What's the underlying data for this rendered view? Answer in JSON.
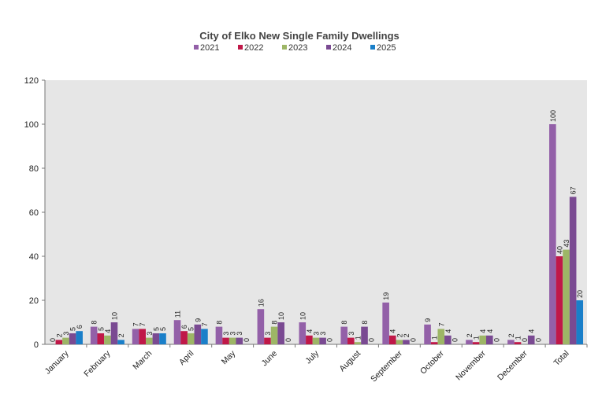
{
  "chart_data": {
    "type": "bar",
    "title": "City of Elko New Single Family Dwellings",
    "xlabel": "",
    "ylabel": "",
    "ylim": [
      0,
      120
    ],
    "yticks": [
      0,
      20,
      40,
      60,
      80,
      100,
      120
    ],
    "grid": false,
    "legend_position": "top-center",
    "categories": [
      "January",
      "February",
      "March",
      "April",
      "May",
      "June",
      "July",
      "August",
      "September",
      "October",
      "November",
      "December",
      "Total"
    ],
    "series": [
      {
        "name": "2021",
        "color": "#9360a8",
        "values": [
          0,
          8,
          7,
          11,
          8,
          16,
          10,
          8,
          19,
          9,
          2,
          2,
          100
        ]
      },
      {
        "name": "2022",
        "color": "#c01848",
        "values": [
          2,
          5,
          7,
          6,
          3,
          3,
          4,
          3,
          4,
          1,
          1,
          1,
          40
        ]
      },
      {
        "name": "2023",
        "color": "#9db666",
        "values": [
          3,
          4,
          3,
          5,
          3,
          8,
          3,
          1,
          2,
          7,
          4,
          0,
          43
        ]
      },
      {
        "name": "2024",
        "color": "#7a4a92",
        "values": [
          5,
          10,
          5,
          9,
          3,
          10,
          3,
          8,
          2,
          4,
          4,
          4,
          67
        ]
      },
      {
        "name": "2025",
        "color": "#1a7fc9",
        "values": [
          6,
          2,
          5,
          7,
          0,
          0,
          0,
          0,
          0,
          0,
          0,
          0,
          20
        ]
      }
    ]
  }
}
